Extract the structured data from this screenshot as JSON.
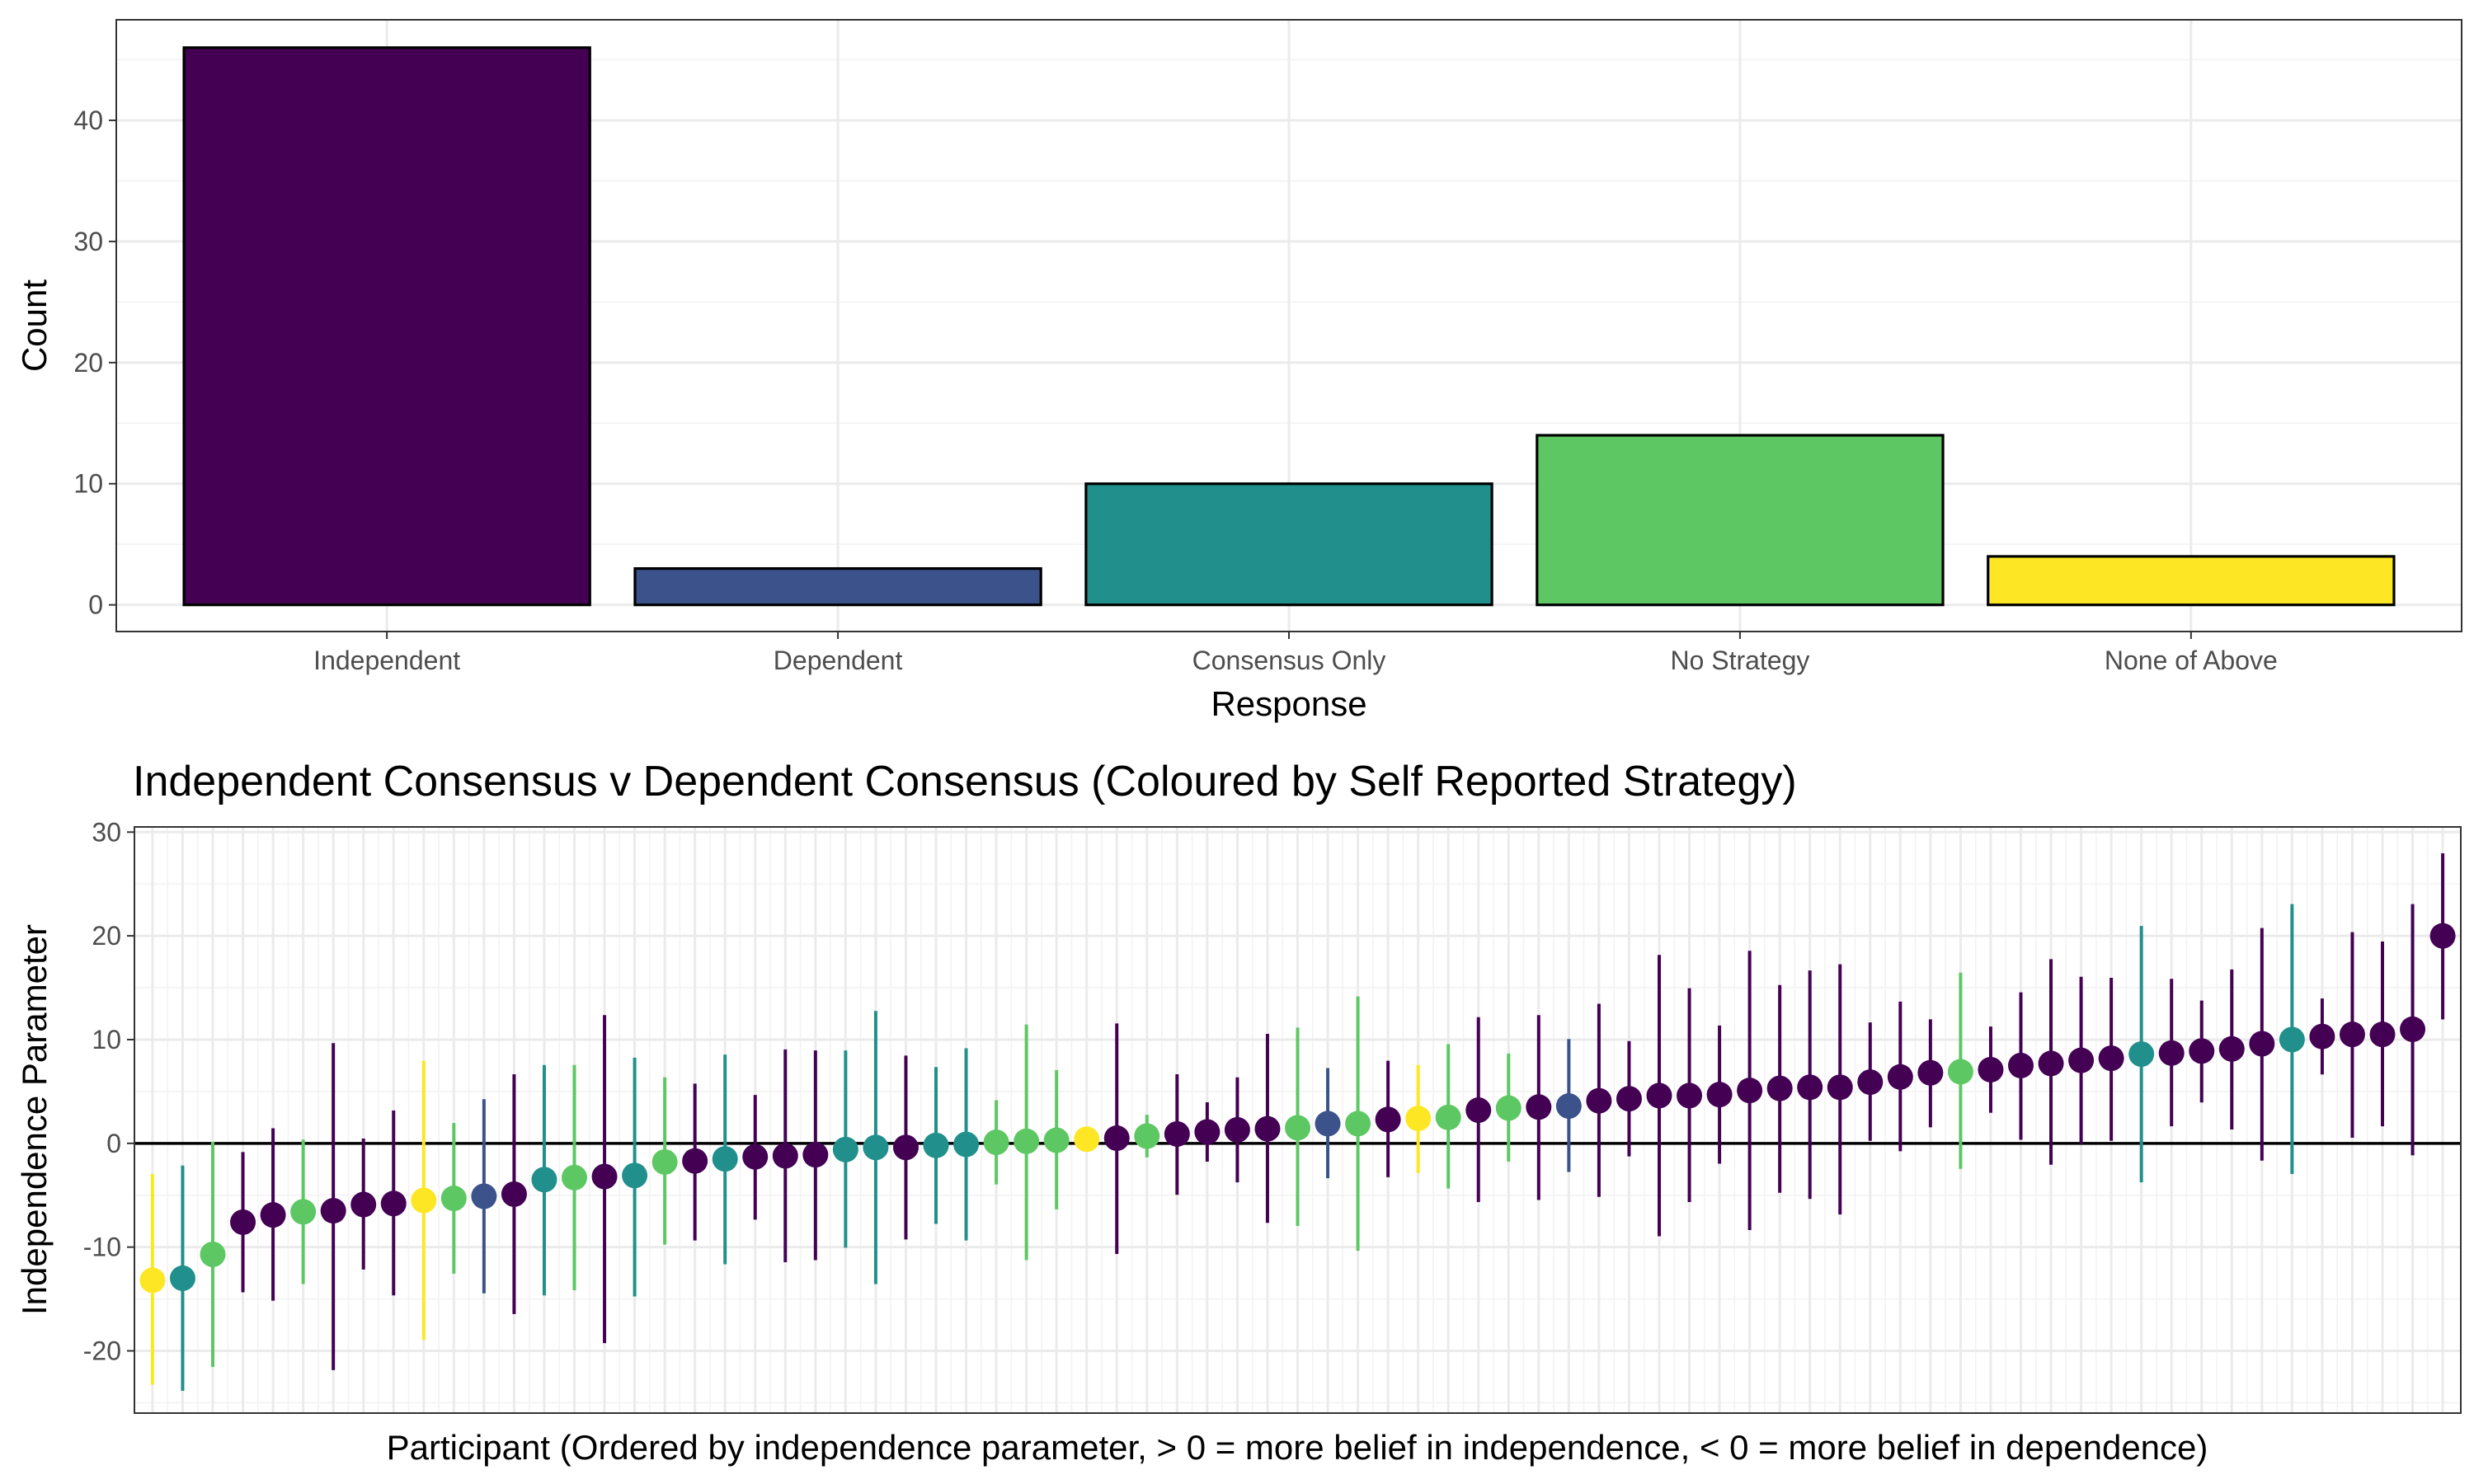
{
  "palette": {
    "Independent": "#440154",
    "Dependent": "#3b528b",
    "Consensus Only": "#21908c",
    "No Strategy": "#5dc863",
    "None of Above": "#fde725"
  },
  "chart_data": [
    {
      "type": "bar",
      "title": "",
      "xlabel": "Response",
      "ylabel": "Count",
      "categories": [
        "Independent",
        "Dependent",
        "Consensus Only",
        "No Strategy",
        "None of Above"
      ],
      "values": [
        46,
        3,
        10,
        14,
        4
      ],
      "ylim": [
        -2.2,
        48.3
      ],
      "yticks": [
        0,
        10,
        20,
        30,
        40
      ],
      "grid": true,
      "legend": "none"
    },
    {
      "type": "scatter",
      "subtype": "pointrange",
      "title": "Independent Consensus v Dependent Consensus (Coloured by Self Reported Strategy)",
      "xlabel": "Participant (Ordered by independence parameter, > 0 = more belief in independence, < 0 = more belief in dependence)",
      "ylabel": "Independence Parameter",
      "ylim": [
        -26,
        30.5
      ],
      "yticks": [
        -20,
        -10,
        0,
        10,
        20,
        30
      ],
      "grid": true,
      "legend": "none",
      "reference_line": 0,
      "points": [
        {
          "y": -13.2,
          "lo": -23.1,
          "hi": -3.1,
          "group": "None of Above"
        },
        {
          "y": -13.0,
          "lo": -23.7,
          "hi": -2.3,
          "group": "Consensus Only"
        },
        {
          "y": -10.7,
          "lo": -21.4,
          "hi": 0.0,
          "group": "No Strategy"
        },
        {
          "y": -7.6,
          "lo": -14.2,
          "hi": -1.0,
          "group": "Independent"
        },
        {
          "y": -6.9,
          "lo": -15.0,
          "hi": 1.3,
          "group": "Independent"
        },
        {
          "y": -6.6,
          "lo": -13.4,
          "hi": 0.2,
          "group": "No Strategy"
        },
        {
          "y": -6.5,
          "lo": -21.7,
          "hi": 9.5,
          "group": "Independent"
        },
        {
          "y": -5.9,
          "lo": -12.0,
          "hi": 0.3,
          "group": "Independent"
        },
        {
          "y": -5.8,
          "lo": -14.5,
          "hi": 3.0,
          "group": "Independent"
        },
        {
          "y": -5.5,
          "lo": -18.8,
          "hi": 7.8,
          "group": "None of Above"
        },
        {
          "y": -5.3,
          "lo": -12.4,
          "hi": 1.8,
          "group": "No Strategy"
        },
        {
          "y": -5.1,
          "lo": -14.3,
          "hi": 4.1,
          "group": "Dependent"
        },
        {
          "y": -4.9,
          "lo": -16.3,
          "hi": 6.5,
          "group": "Independent"
        },
        {
          "y": -3.5,
          "lo": -14.5,
          "hi": 7.4,
          "group": "Consensus Only"
        },
        {
          "y": -3.3,
          "lo": -14.0,
          "hi": 7.4,
          "group": "No Strategy"
        },
        {
          "y": -3.2,
          "lo": -19.1,
          "hi": 12.2,
          "group": "Independent"
        },
        {
          "y": -3.1,
          "lo": -14.6,
          "hi": 8.1,
          "group": "Consensus Only"
        },
        {
          "y": -1.8,
          "lo": -9.6,
          "hi": 6.2,
          "group": "No Strategy"
        },
        {
          "y": -1.7,
          "lo": -9.2,
          "hi": 5.6,
          "group": "Independent"
        },
        {
          "y": -1.5,
          "lo": -11.5,
          "hi": 8.4,
          "group": "Consensus Only"
        },
        {
          "y": -1.3,
          "lo": -7.2,
          "hi": 4.5,
          "group": "Independent"
        },
        {
          "y": -1.2,
          "lo": -11.3,
          "hi": 8.9,
          "group": "Independent"
        },
        {
          "y": -1.1,
          "lo": -11.1,
          "hi": 8.8,
          "group": "Independent"
        },
        {
          "y": -0.6,
          "lo": -9.9,
          "hi": 8.8,
          "group": "Consensus Only"
        },
        {
          "y": -0.4,
          "lo": -13.4,
          "hi": 12.6,
          "group": "Consensus Only"
        },
        {
          "y": -0.4,
          "lo": -9.1,
          "hi": 8.3,
          "group": "Independent"
        },
        {
          "y": -0.2,
          "lo": -7.6,
          "hi": 7.2,
          "group": "Consensus Only"
        },
        {
          "y": -0.1,
          "lo": -9.2,
          "hi": 9.0,
          "group": "Consensus Only"
        },
        {
          "y": 0.1,
          "lo": -3.8,
          "hi": 4.0,
          "group": "No Strategy"
        },
        {
          "y": 0.2,
          "lo": -11.1,
          "hi": 11.3,
          "group": "No Strategy"
        },
        {
          "y": 0.3,
          "lo": -6.2,
          "hi": 6.9,
          "group": "No Strategy"
        },
        {
          "y": 0.4,
          "lo": -0.3,
          "hi": 1.1,
          "group": "None of Above"
        },
        {
          "y": 0.5,
          "lo": -10.5,
          "hi": 11.4,
          "group": "Independent"
        },
        {
          "y": 0.7,
          "lo": -1.2,
          "hi": 2.6,
          "group": "No Strategy"
        },
        {
          "y": 0.9,
          "lo": -4.8,
          "hi": 6.5,
          "group": "Independent"
        },
        {
          "y": 1.1,
          "lo": -1.6,
          "hi": 3.8,
          "group": "Independent"
        },
        {
          "y": 1.3,
          "lo": -3.6,
          "hi": 6.2,
          "group": "Independent"
        },
        {
          "y": 1.4,
          "lo": -7.5,
          "hi": 10.4,
          "group": "Independent"
        },
        {
          "y": 1.5,
          "lo": -7.8,
          "hi": 11.0,
          "group": "No Strategy"
        },
        {
          "y": 1.9,
          "lo": -3.2,
          "hi": 7.1,
          "group": "Dependent"
        },
        {
          "y": 1.9,
          "lo": -10.2,
          "hi": 14.0,
          "group": "No Strategy"
        },
        {
          "y": 2.3,
          "lo": -3.1,
          "hi": 7.8,
          "group": "Independent"
        },
        {
          "y": 2.4,
          "lo": -2.7,
          "hi": 7.4,
          "group": "None of Above"
        },
        {
          "y": 2.5,
          "lo": -4.2,
          "hi": 9.4,
          "group": "No Strategy"
        },
        {
          "y": 3.2,
          "lo": -5.5,
          "hi": 12.0,
          "group": "Independent"
        },
        {
          "y": 3.4,
          "lo": -1.6,
          "hi": 8.5,
          "group": "No Strategy"
        },
        {
          "y": 3.5,
          "lo": -5.3,
          "hi": 12.2,
          "group": "Independent"
        },
        {
          "y": 3.6,
          "lo": -2.6,
          "hi": 9.9,
          "group": "Dependent"
        },
        {
          "y": 4.1,
          "lo": -5.0,
          "hi": 13.3,
          "group": "Independent"
        },
        {
          "y": 4.3,
          "lo": -1.1,
          "hi": 9.7,
          "group": "Independent"
        },
        {
          "y": 4.6,
          "lo": -8.8,
          "hi": 18.0,
          "group": "Independent"
        },
        {
          "y": 4.6,
          "lo": -5.5,
          "hi": 14.8,
          "group": "Independent"
        },
        {
          "y": 4.7,
          "lo": -1.8,
          "hi": 11.2,
          "group": "Independent"
        },
        {
          "y": 5.1,
          "lo": -8.2,
          "hi": 18.4,
          "group": "Independent"
        },
        {
          "y": 5.3,
          "lo": -4.6,
          "hi": 15.1,
          "group": "Independent"
        },
        {
          "y": 5.4,
          "lo": -5.2,
          "hi": 16.5,
          "group": "Independent"
        },
        {
          "y": 5.4,
          "lo": -6.7,
          "hi": 17.1,
          "group": "Independent"
        },
        {
          "y": 5.9,
          "lo": 0.4,
          "hi": 11.5,
          "group": "Independent"
        },
        {
          "y": 6.4,
          "lo": -0.6,
          "hi": 13.5,
          "group": "Independent"
        },
        {
          "y": 6.8,
          "lo": 1.7,
          "hi": 11.8,
          "group": "Independent"
        },
        {
          "y": 6.9,
          "lo": -2.3,
          "hi": 16.3,
          "group": "No Strategy"
        },
        {
          "y": 7.1,
          "lo": 3.1,
          "hi": 11.1,
          "group": "Independent"
        },
        {
          "y": 7.5,
          "lo": 0.5,
          "hi": 14.4,
          "group": "Independent"
        },
        {
          "y": 7.7,
          "lo": -1.9,
          "hi": 17.6,
          "group": "Independent"
        },
        {
          "y": 8.0,
          "lo": 0.1,
          "hi": 15.9,
          "group": "Independent"
        },
        {
          "y": 8.2,
          "lo": 0.4,
          "hi": 15.8,
          "group": "Independent"
        },
        {
          "y": 8.6,
          "lo": -3.6,
          "hi": 20.8,
          "group": "Consensus Only"
        },
        {
          "y": 8.7,
          "lo": 1.8,
          "hi": 15.7,
          "group": "Independent"
        },
        {
          "y": 8.9,
          "lo": 4.1,
          "hi": 13.6,
          "group": "Independent"
        },
        {
          "y": 9.1,
          "lo": 1.5,
          "hi": 16.6,
          "group": "Independent"
        },
        {
          "y": 9.6,
          "lo": -1.5,
          "hi": 20.6,
          "group": "Independent"
        },
        {
          "y": 10.0,
          "lo": -2.8,
          "hi": 22.9,
          "group": "Consensus Only"
        },
        {
          "y": 10.3,
          "lo": 6.8,
          "hi": 13.8,
          "group": "Independent"
        },
        {
          "y": 10.5,
          "lo": 0.7,
          "hi": 20.2,
          "group": "Independent"
        },
        {
          "y": 10.5,
          "lo": 1.8,
          "hi": 19.3,
          "group": "Independent"
        },
        {
          "y": 11.0,
          "lo": -1.0,
          "hi": 22.9,
          "group": "Independent"
        },
        {
          "y": 20.0,
          "lo": 12.1,
          "hi": 27.8,
          "group": "Independent"
        }
      ]
    }
  ]
}
